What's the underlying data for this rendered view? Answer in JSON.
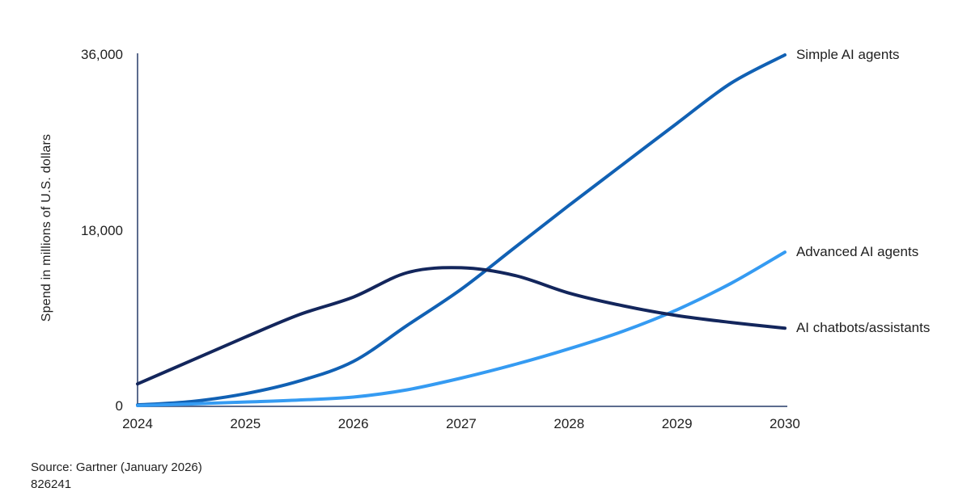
{
  "chart_data": {
    "type": "line",
    "title": "",
    "xlabel": "",
    "ylabel": "Spend in millions of U.S. dollars",
    "x_range": [
      2024,
      2030
    ],
    "y_range": [
      0,
      36000
    ],
    "grid": false,
    "legend_position": "labels-at-line-ends-right",
    "x_ticks": [
      "2024",
      "2025",
      "2026",
      "2027",
      "2028",
      "2029",
      "2030"
    ],
    "y_ticks": [
      {
        "label": "0",
        "value": 0
      },
      {
        "label": "18,000",
        "value": 18000
      },
      {
        "label": "36,000",
        "value": 36000
      }
    ],
    "series": [
      {
        "name": "Simple AI agents",
        "slug": "simple-ai-agents",
        "color": "#1161b4",
        "x": [
          2024,
          2024.5,
          2025,
          2025.5,
          2026,
          2026.5,
          2027,
          2027.5,
          2028,
          2028.5,
          2029,
          2029.5,
          2030
        ],
        "values": [
          150,
          500,
          1300,
          2600,
          4600,
          8300,
          12000,
          16300,
          20600,
          24800,
          29000,
          33100,
          36000
        ]
      },
      {
        "name": "Advanced AI agents",
        "slug": "advanced-ai-agents",
        "color": "#359bf2",
        "x": [
          2024,
          2024.5,
          2025,
          2025.5,
          2026,
          2026.5,
          2027,
          2027.5,
          2028,
          2028.5,
          2029,
          2029.5,
          2030
        ],
        "values": [
          80,
          250,
          450,
          650,
          950,
          1700,
          2900,
          4300,
          5900,
          7700,
          9900,
          12600,
          15800
        ]
      },
      {
        "name": "AI chatbots/assistants",
        "slug": "ai-chatbots-assistants",
        "color": "#13265c",
        "x": [
          2024,
          2024.5,
          2025,
          2025.5,
          2026,
          2026.5,
          2027,
          2027.5,
          2028,
          2028.5,
          2029,
          2029.5,
          2030
        ],
        "values": [
          2300,
          4700,
          7100,
          9400,
          11200,
          13700,
          14200,
          13400,
          11600,
          10300,
          9300,
          8600,
          8000
        ]
      }
    ]
  },
  "footer": {
    "source": "Source: Gartner (January 2026)",
    "note_id": "826241"
  },
  "colors": {
    "axis": "#5c6b8e",
    "text": "#1f1f1f"
  }
}
